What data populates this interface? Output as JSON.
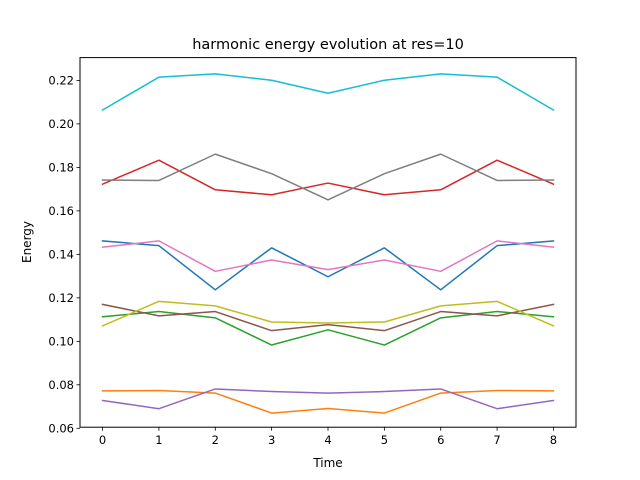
{
  "chart_data": {
    "type": "line",
    "title": "harmonic energy evolution at res=10",
    "xlabel": "Time",
    "ylabel": "Energy",
    "xlim": [
      -0.4,
      8.4
    ],
    "ylim": [
      0.0605,
      0.2305
    ],
    "xticks": [
      0,
      1,
      2,
      3,
      4,
      5,
      6,
      7,
      8
    ],
    "yticks": [
      0.06,
      0.08,
      0.1,
      0.12,
      0.14,
      0.16,
      0.18,
      0.2,
      0.22
    ],
    "ytick_labels": [
      "0.06",
      "0.08",
      "0.10",
      "0.12",
      "0.14",
      "0.16",
      "0.18",
      "0.20",
      "0.22"
    ],
    "grid": false,
    "legend": false,
    "x": [
      0,
      1,
      2,
      3,
      4,
      5,
      6,
      7,
      8
    ],
    "series": [
      {
        "color": "#1f77b4",
        "values": [
          0.1462,
          0.144,
          0.1237,
          0.143,
          0.1297,
          0.143,
          0.1237,
          0.144,
          0.1462
        ]
      },
      {
        "color": "#ff7f0e",
        "values": [
          0.0772,
          0.0774,
          0.0762,
          0.067,
          0.0691,
          0.067,
          0.0762,
          0.0774,
          0.0772
        ]
      },
      {
        "color": "#2ca02c",
        "values": [
          0.1113,
          0.1137,
          0.1108,
          0.0983,
          0.1053,
          0.0983,
          0.1108,
          0.1137,
          0.1113
        ]
      },
      {
        "color": "#d62728",
        "values": [
          0.1723,
          0.1833,
          0.1697,
          0.1674,
          0.1728,
          0.1674,
          0.1697,
          0.1833,
          0.1723
        ]
      },
      {
        "color": "#9467bd",
        "values": [
          0.0728,
          0.069,
          0.0781,
          0.0769,
          0.0762,
          0.0769,
          0.0781,
          0.069,
          0.0728
        ]
      },
      {
        "color": "#8c564b",
        "values": [
          0.117,
          0.1117,
          0.1137,
          0.1049,
          0.1077,
          0.1049,
          0.1137,
          0.1117,
          0.117
        ]
      },
      {
        "color": "#e377c2",
        "values": [
          0.1433,
          0.1462,
          0.1322,
          0.1374,
          0.133,
          0.1374,
          0.1322,
          0.1462,
          0.1433
        ]
      },
      {
        "color": "#7f7f7f",
        "values": [
          0.1742,
          0.174,
          0.1861,
          0.1771,
          0.1651,
          0.1771,
          0.1861,
          0.174,
          0.1742
        ]
      },
      {
        "color": "#bcbd22",
        "values": [
          0.1071,
          0.1184,
          0.1163,
          0.1089,
          0.1084,
          0.1089,
          0.1163,
          0.1184,
          0.1071
        ]
      },
      {
        "color": "#17becf",
        "values": [
          0.2064,
          0.2215,
          0.223,
          0.2201,
          0.2141,
          0.2201,
          0.223,
          0.2215,
          0.2064
        ]
      }
    ]
  }
}
